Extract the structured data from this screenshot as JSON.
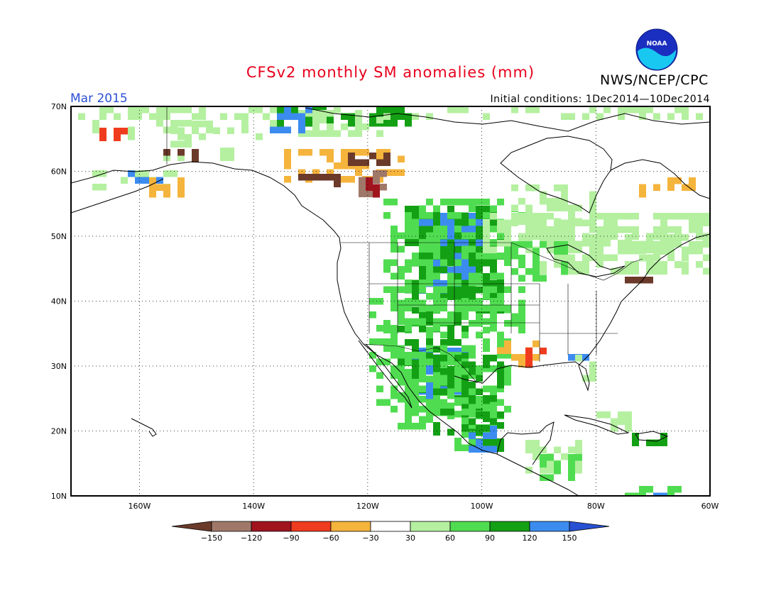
{
  "header": {
    "title": "CFSv2 monthly SM anomalies (mm)",
    "month": "Mar 2015",
    "initial_conditions": "Initial conditions: 1Dec2014—10Dec2014",
    "agency": "NWS/NCEP/CPC",
    "logo_text": "NOAA"
  },
  "map": {
    "lon_range": [
      -172,
      -60
    ],
    "lat_range": [
      10,
      70
    ],
    "lat_labels": [
      "70N",
      "60N",
      "50N",
      "40N",
      "30N",
      "20N",
      "10N"
    ],
    "lon_labels": [
      "160W",
      "140W",
      "120W",
      "100W",
      "80W",
      "60W"
    ],
    "grid": "dotted"
  },
  "legend": {
    "labels": [
      "−150",
      "−120",
      "−90",
      "−60",
      "−30",
      "30",
      "60",
      "90",
      "120",
      "150"
    ],
    "colors": [
      "#6b3a2a",
      "#a0786a",
      "#a0141e",
      "#f03c1e",
      "#f5b43c",
      "#ffffff",
      "#b4f0a0",
      "#50dc50",
      "#14a014",
      "#3c8cf0",
      "#2850d2"
    ]
  },
  "colors": {
    "title": "#e8001c",
    "month": "#2a4fd6",
    "light_green": "#b4f0a0",
    "green": "#50dc50",
    "dark_green": "#14a014",
    "blue": "#3c8cf0",
    "orange": "#f5b43c",
    "red": "#f03c1e",
    "dark_red": "#a0141e",
    "brown": "#6b3a2a",
    "tan": "#a0786a"
  }
}
